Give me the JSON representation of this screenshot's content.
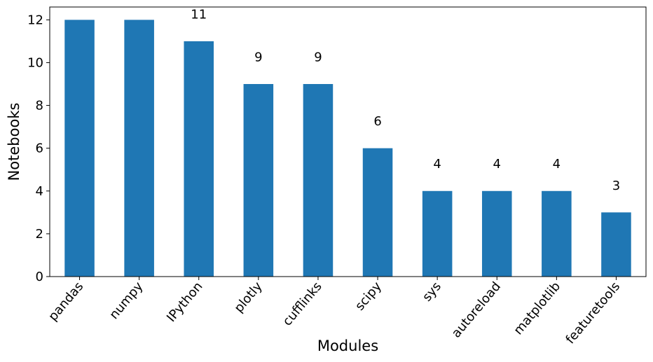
{
  "chart_data": {
    "type": "bar",
    "categories": [
      "pandas",
      "numpy",
      "IPython",
      "plotly",
      "cufflinks",
      "scipy",
      "sys",
      "autoreload",
      "matplotlib",
      "featuretools"
    ],
    "values": [
      12,
      12,
      11,
      9,
      9,
      6,
      4,
      4,
      4,
      3
    ],
    "data_labels": [
      "",
      "",
      "11",
      "9",
      "9",
      "6",
      "4",
      "4",
      "4",
      "3"
    ],
    "xlabel": "Modules",
    "ylabel": "Notebooks",
    "ylim": [
      0,
      12.6
    ],
    "yticks": [
      0,
      2,
      4,
      6,
      8,
      10,
      12
    ],
    "bar_color": "#1f77b4",
    "grid": false,
    "legend": "none"
  }
}
